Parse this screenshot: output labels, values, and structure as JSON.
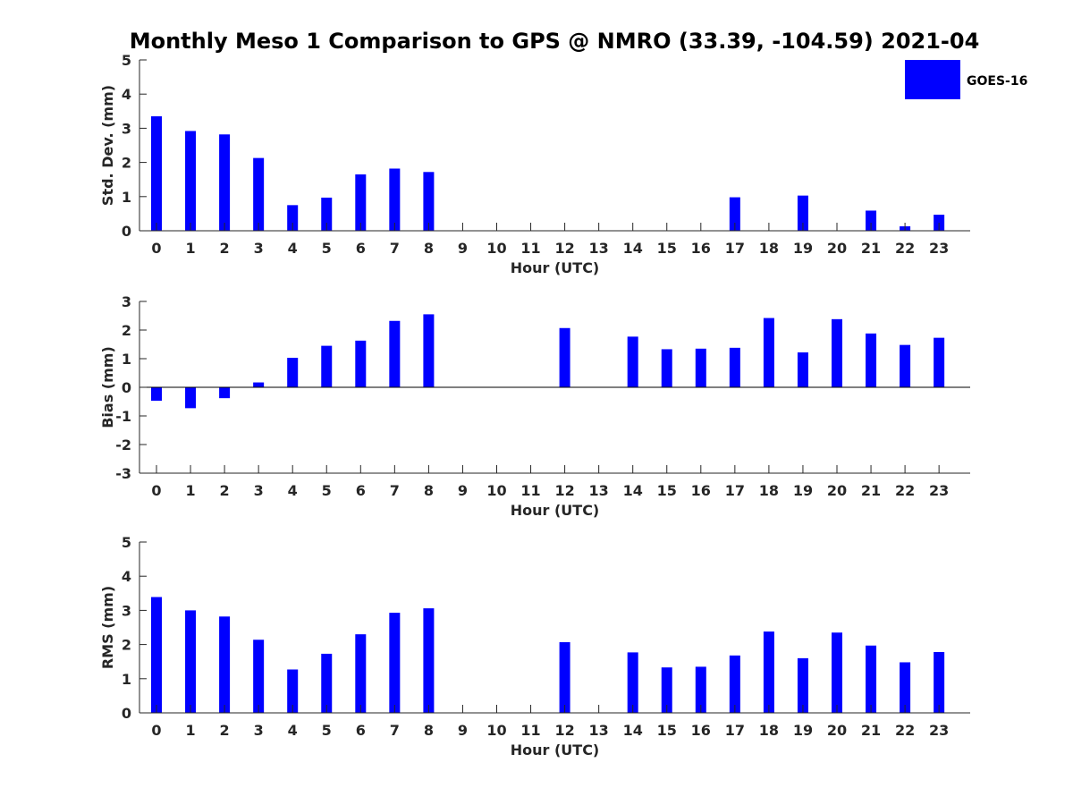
{
  "title": "Monthly Meso 1 Comparison to GPS @ NMRO (33.39, -104.59) 2021-04",
  "legend": {
    "label": "GOES-16",
    "color": "#0000ff",
    "placement": "top-right"
  },
  "chart_data": [
    {
      "type": "bar",
      "xlabel": "Hour (UTC)",
      "ylabel": "Std. Dev. (mm)",
      "ylim": [
        0,
        5
      ],
      "yticks": [
        "0",
        "1",
        "2",
        "3",
        "4",
        "5"
      ],
      "categories": [
        "0",
        "1",
        "2",
        "3",
        "4",
        "5",
        "6",
        "7",
        "8",
        "9",
        "10",
        "11",
        "12",
        "13",
        "14",
        "15",
        "16",
        "17",
        "18",
        "19",
        "20",
        "21",
        "22",
        "23"
      ],
      "series": [
        {
          "name": "GOES-16",
          "values": [
            3.35,
            2.92,
            2.82,
            2.13,
            0.75,
            0.97,
            1.65,
            1.82,
            1.72,
            null,
            null,
            null,
            null,
            null,
            null,
            null,
            null,
            0.98,
            null,
            1.03,
            null,
            0.59,
            0.13,
            0.47
          ]
        }
      ]
    },
    {
      "type": "bar",
      "xlabel": "Hour (UTC)",
      "ylabel": "Bias (mm)",
      "ylim": [
        -3,
        3
      ],
      "yticks": [
        "-3",
        "-2",
        "-1",
        "0",
        "1",
        "2",
        "3"
      ],
      "categories": [
        "0",
        "1",
        "2",
        "3",
        "4",
        "5",
        "6",
        "7",
        "8",
        "9",
        "10",
        "11",
        "12",
        "13",
        "14",
        "15",
        "16",
        "17",
        "18",
        "19",
        "20",
        "21",
        "22",
        "23"
      ],
      "series": [
        {
          "name": "GOES-16",
          "values": [
            -0.47,
            -0.73,
            -0.38,
            0.17,
            1.03,
            1.45,
            1.63,
            2.32,
            2.55,
            null,
            null,
            null,
            2.07,
            null,
            1.77,
            1.33,
            1.35,
            1.38,
            2.42,
            1.22,
            2.38,
            1.88,
            1.48,
            1.73
          ]
        }
      ]
    },
    {
      "type": "bar",
      "xlabel": "Hour (UTC)",
      "ylabel": "RMS (mm)",
      "ylim": [
        0,
        5
      ],
      "yticks": [
        "0",
        "1",
        "2",
        "3",
        "4",
        "5"
      ],
      "categories": [
        "0",
        "1",
        "2",
        "3",
        "4",
        "5",
        "6",
        "7",
        "8",
        "9",
        "10",
        "11",
        "12",
        "13",
        "14",
        "15",
        "16",
        "17",
        "18",
        "19",
        "20",
        "21",
        "22",
        "23"
      ],
      "series": [
        {
          "name": "GOES-16",
          "values": [
            3.39,
            3.0,
            2.82,
            2.14,
            1.27,
            1.73,
            2.3,
            2.93,
            3.06,
            null,
            null,
            null,
            2.07,
            null,
            1.77,
            1.33,
            1.35,
            1.68,
            2.38,
            1.6,
            2.35,
            1.97,
            1.48,
            1.78
          ]
        }
      ]
    }
  ]
}
